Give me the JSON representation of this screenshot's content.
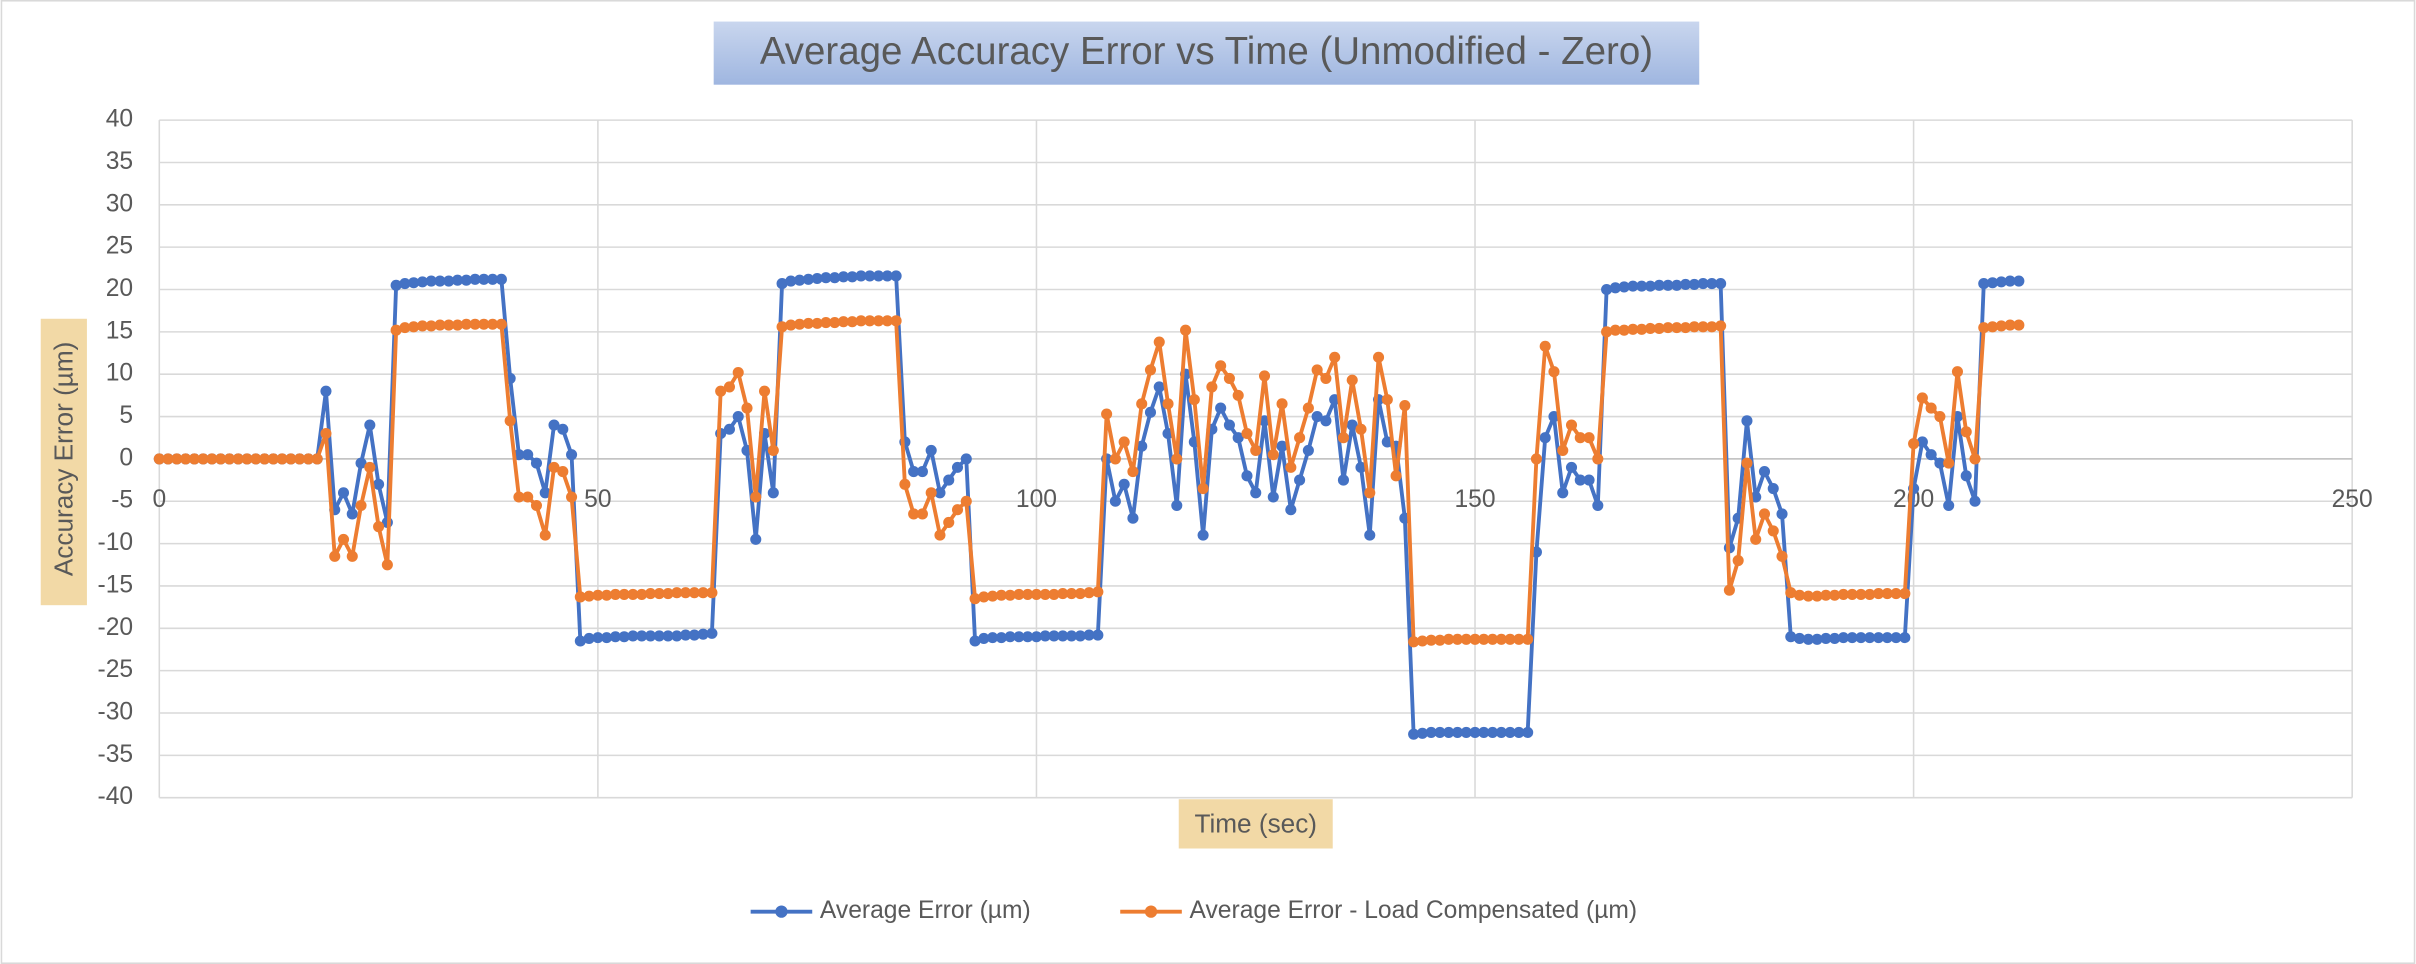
{
  "chart_data": {
    "type": "line",
    "title": "Average Accuracy Error vs Time (Unmodified - Zero)",
    "x_label": "Time (sec)",
    "y_label": "Accuracy Error (µm)",
    "xlim": [
      0,
      250
    ],
    "xticks": [
      0,
      50,
      100,
      150,
      200,
      250
    ],
    "ylim": [
      -40,
      40
    ],
    "yticks": [
      -40,
      -35,
      -30,
      -25,
      -20,
      -15,
      -10,
      -5,
      0,
      5,
      10,
      15,
      20,
      25,
      30,
      35,
      40
    ],
    "grid": true,
    "legend": "bottom",
    "x": [
      0,
      1,
      2,
      3,
      4,
      5,
      6,
      7,
      8,
      9,
      10,
      11,
      12,
      13,
      14,
      15,
      16,
      17,
      18,
      19,
      20,
      21,
      22,
      23,
      24,
      25,
      26,
      27,
      28,
      29,
      30,
      31,
      32,
      33,
      34,
      35,
      36,
      37,
      38,
      39,
      40,
      41,
      42,
      43,
      44,
      45,
      46,
      47,
      48,
      49,
      50,
      51,
      52,
      53,
      54,
      55,
      56,
      57,
      58,
      59,
      60,
      61,
      62,
      63,
      64,
      65,
      66,
      67,
      68,
      69,
      70,
      71,
      72,
      73,
      74,
      75,
      76,
      77,
      78,
      79,
      80,
      81,
      82,
      83,
      84,
      85,
      86,
      87,
      88,
      89,
      90,
      91,
      92,
      93,
      94,
      95,
      96,
      97,
      98,
      99,
      100,
      101,
      102,
      103,
      104,
      105,
      106,
      107,
      108,
      109,
      110,
      111,
      112,
      113,
      114,
      115,
      116,
      117,
      118,
      119,
      120,
      121,
      122,
      123,
      124,
      125,
      126,
      127,
      128,
      129,
      130,
      131,
      132,
      133,
      134,
      135,
      136,
      137,
      138,
      139,
      140,
      141,
      142,
      143,
      144,
      145,
      146,
      147,
      148,
      149,
      150,
      151,
      152,
      153,
      154,
      155,
      156,
      157,
      158,
      159,
      160,
      161,
      162,
      163,
      164,
      165,
      166,
      167,
      168,
      169,
      170,
      171,
      172,
      173,
      174,
      175,
      176,
      177,
      178,
      179,
      180,
      181,
      182,
      183,
      184,
      185,
      186,
      187,
      188,
      189,
      190,
      191,
      192,
      193,
      194,
      195,
      196,
      197,
      198,
      199,
      200,
      201,
      202,
      203,
      204,
      205,
      206,
      207,
      208,
      209,
      210,
      211,
      212
    ],
    "series": [
      {
        "name": "Average Error (µm)",
        "color": "#4472c4",
        "values": [
          0,
          0,
          0,
          0,
          0,
          0,
          0,
          0,
          0,
          0,
          0,
          0,
          0,
          0,
          0,
          0,
          0,
          0,
          0,
          8,
          -6,
          -4,
          -6.5,
          -0.5,
          4,
          -3,
          -7.5,
          20.5,
          20.7,
          20.8,
          20.9,
          21,
          21,
          21,
          21.1,
          21.1,
          21.2,
          21.2,
          21.2,
          21.2,
          9.5,
          0.5,
          0.5,
          -0.5,
          -4,
          4,
          3.5,
          0.5,
          -21.5,
          -21.2,
          -21.1,
          -21.1,
          -21,
          -21,
          -20.9,
          -20.9,
          -20.9,
          -20.9,
          -20.9,
          -20.9,
          -20.8,
          -20.8,
          -20.7,
          -20.6,
          3,
          3.5,
          5,
          1,
          -9.5,
          3,
          -4,
          20.7,
          21,
          21.1,
          21.2,
          21.3,
          21.4,
          21.4,
          21.5,
          21.5,
          21.6,
          21.6,
          21.6,
          21.6,
          21.6,
          2,
          -1.5,
          -1.5,
          1,
          -4,
          -2.5,
          -1,
          0,
          -21.5,
          -21.2,
          -21.1,
          -21.1,
          -21,
          -21,
          -21,
          -21,
          -20.9,
          -20.9,
          -20.9,
          -20.9,
          -20.9,
          -20.8,
          -20.8,
          0,
          -5,
          -3,
          -7,
          1.5,
          5.5,
          8.5,
          3,
          -5.5,
          10,
          2,
          -9,
          3.5,
          6,
          4,
          2.5,
          -2,
          -4,
          4.5,
          -4.5,
          1.5,
          -6,
          -2.5,
          1,
          5,
          4.5,
          7,
          -2.5,
          4,
          -1,
          -9,
          7,
          2,
          1.5,
          -7,
          -32.5,
          -32.4,
          -32.3,
          -32.3,
          -32.3,
          -32.3,
          -32.3,
          -32.3,
          -32.3,
          -32.3,
          -32.3,
          -32.3,
          -32.3,
          -32.3,
          -11,
          2.5,
          5,
          -4,
          -1,
          -2.5,
          -2.5,
          -5.5,
          20,
          20.2,
          20.3,
          20.4,
          20.4,
          20.4,
          20.5,
          20.5,
          20.5,
          20.6,
          20.6,
          20.7,
          20.7,
          20.7,
          -10.5,
          -7,
          4.5,
          -4.5,
          -1.5,
          -3.5,
          -6.5,
          -21,
          -21.2,
          -21.3,
          -21.3,
          -21.2,
          -21.2,
          -21.1,
          -21.1,
          -21.1,
          -21.1,
          -21.1,
          -21.1,
          -21.1,
          -21.1,
          -3.5,
          2,
          0.5,
          -0.5,
          -5.5,
          5,
          -2,
          -5,
          20.7,
          20.8,
          20.9,
          21,
          21
        ]
      },
      {
        "name": "Average Error - Load Compensated (µm)",
        "color": "#ed7d31",
        "values": [
          0,
          0,
          0,
          0,
          0,
          0,
          0,
          0,
          0,
          0,
          0,
          0,
          0,
          0,
          0,
          0,
          0,
          0,
          0,
          3,
          -11.5,
          -9.5,
          -11.5,
          -5.5,
          -1,
          -8,
          -12.5,
          15.2,
          15.5,
          15.6,
          15.7,
          15.7,
          15.8,
          15.8,
          15.8,
          15.9,
          15.9,
          15.9,
          15.9,
          15.9,
          4.5,
          -4.5,
          -4.5,
          -5.5,
          -9,
          -1,
          -1.5,
          -4.5,
          -16.3,
          -16.2,
          -16.1,
          -16.1,
          -16,
          -16,
          -16,
          -16,
          -15.9,
          -15.9,
          -15.9,
          -15.8,
          -15.8,
          -15.8,
          -15.8,
          -15.8,
          8,
          8.5,
          10.2,
          6,
          -4.5,
          8,
          1,
          15.6,
          15.8,
          15.9,
          16,
          16,
          16.1,
          16.1,
          16.2,
          16.2,
          16.3,
          16.3,
          16.3,
          16.3,
          16.3,
          -3,
          -6.5,
          -6.5,
          -4,
          -9,
          -7.5,
          -6,
          -5,
          -16.5,
          -16.3,
          -16.2,
          -16.1,
          -16.1,
          -16,
          -16,
          -16,
          -16,
          -16,
          -15.9,
          -15.9,
          -15.9,
          -15.8,
          -15.7,
          5.3,
          0,
          2,
          -1.5,
          6.5,
          10.5,
          13.8,
          6.5,
          0,
          15.2,
          7,
          -3.5,
          8.5,
          11,
          9.5,
          7.5,
          3,
          1,
          9.8,
          0.5,
          6.5,
          -1,
          2.5,
          6,
          10.5,
          9.5,
          12,
          2.5,
          9.3,
          3.5,
          -4,
          12,
          7,
          -2,
          6.3,
          -21.6,
          -21.5,
          -21.4,
          -21.4,
          -21.3,
          -21.3,
          -21.3,
          -21.3,
          -21.3,
          -21.3,
          -21.3,
          -21.3,
          -21.3,
          -21.3,
          0,
          13.3,
          10.3,
          1,
          4,
          2.5,
          2.5,
          0,
          15,
          15.2,
          15.2,
          15.3,
          15.3,
          15.4,
          15.4,
          15.5,
          15.5,
          15.5,
          15.6,
          15.6,
          15.6,
          15.7,
          -15.5,
          -12,
          -0.5,
          -9.5,
          -6.5,
          -8.5,
          -11.5,
          -15.8,
          -16.1,
          -16.2,
          -16.2,
          -16.1,
          -16.1,
          -16,
          -16,
          -16,
          -16,
          -15.9,
          -15.9,
          -15.9,
          -15.9,
          1.8,
          7.2,
          6,
          5,
          -0.5,
          10.3,
          3.2,
          0,
          15.5,
          15.6,
          15.7,
          15.8,
          15.8
        ]
      }
    ]
  }
}
